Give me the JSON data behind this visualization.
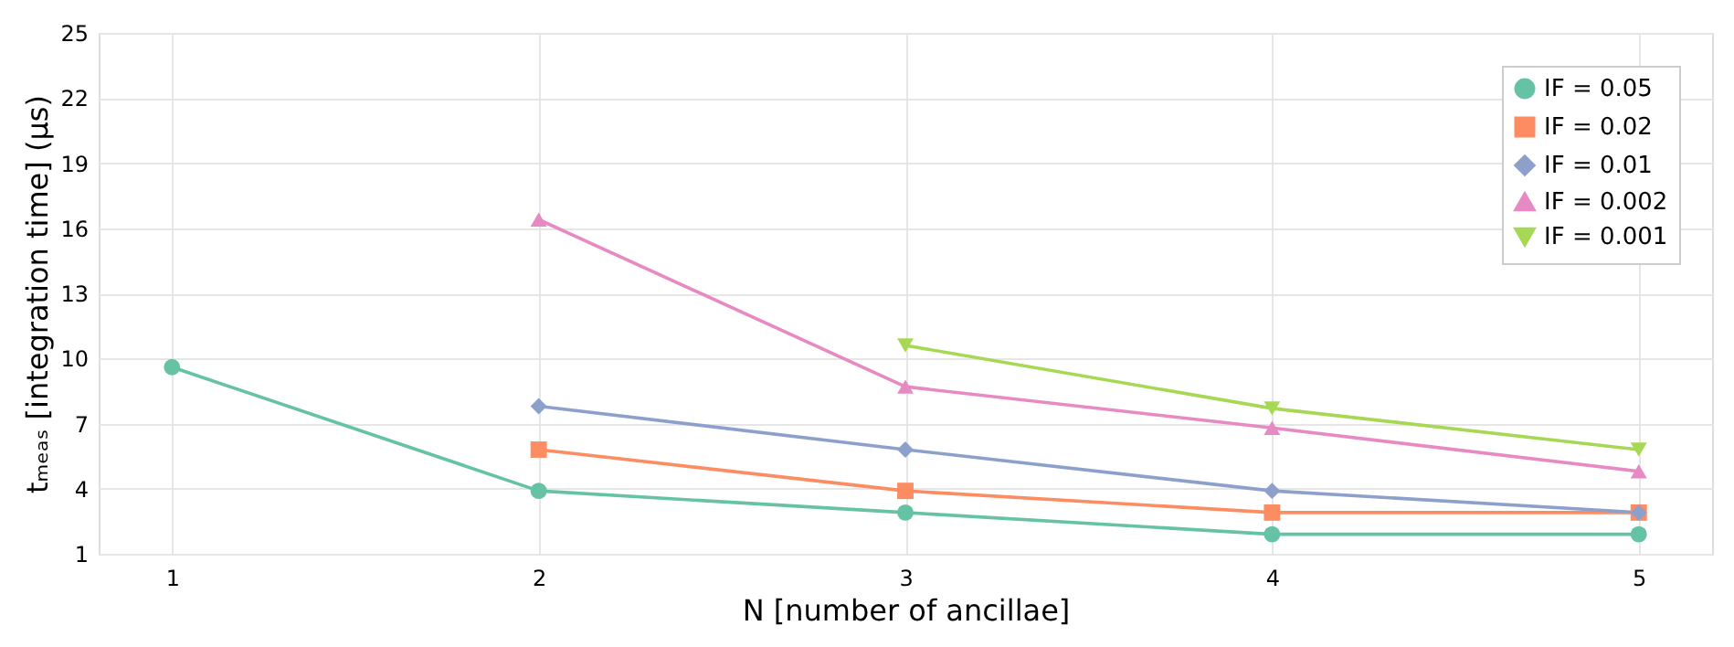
{
  "chart_data": {
    "type": "line",
    "xlabel": "N [number of ancillae]",
    "ylabel": "tₘₑₐₛ [integration time] (μs)",
    "xlim": [
      0.8,
      5.2
    ],
    "xticks": [
      1,
      2,
      3,
      4,
      5
    ],
    "ylim": [
      1,
      25
    ],
    "yticks": [
      1,
      4,
      7,
      10,
      13,
      16,
      19,
      22,
      25
    ],
    "grid": true,
    "legend": "top right",
    "series": [
      {
        "name": "IF = 0.05",
        "color": "#66c2a5",
        "marker": "circle",
        "x": [
          1,
          2,
          3,
          4,
          5
        ],
        "values": [
          9.6,
          3.9,
          2.9,
          1.9,
          1.9
        ]
      },
      {
        "name": "IF = 0.02",
        "color": "#fc8d62",
        "marker": "square",
        "x": [
          2,
          3,
          4,
          5
        ],
        "values": [
          5.8,
          3.9,
          2.9,
          2.9
        ]
      },
      {
        "name": "IF = 0.01",
        "color": "#8da0cb",
        "marker": "diamond",
        "x": [
          2,
          3,
          4,
          5
        ],
        "values": [
          7.8,
          5.8,
          3.9,
          2.9
        ]
      },
      {
        "name": "IF = 0.002",
        "color": "#e78ac3",
        "marker": "triangle",
        "x": [
          2,
          3,
          4,
          5
        ],
        "values": [
          16.4,
          8.7,
          6.8,
          4.8
        ]
      },
      {
        "name": "IF = 0.001",
        "color": "#a6d854",
        "marker": "triangle_down",
        "x": [
          3,
          4,
          5
        ],
        "values": [
          10.6,
          7.7,
          5.8
        ]
      }
    ]
  }
}
